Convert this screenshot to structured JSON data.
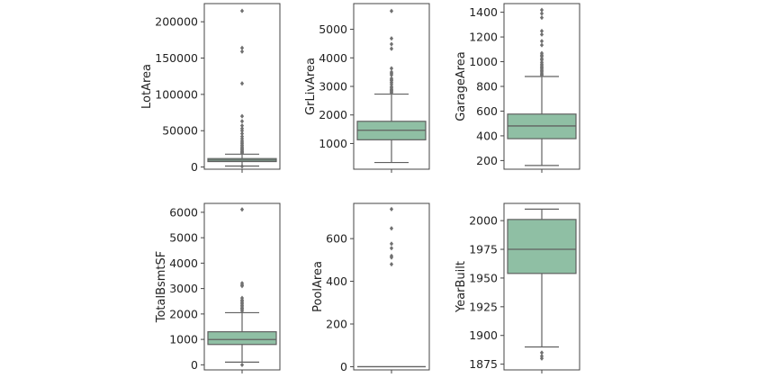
{
  "colors": {
    "box_fill": "#8fbfa4",
    "box_edge": "#606060",
    "outlier": "#707070",
    "frame": "#444444"
  },
  "chart_data": [
    {
      "type": "box",
      "ylabel": "LotArea",
      "ylim": [
        -3000,
        225000
      ],
      "ticks": [
        0,
        50000,
        100000,
        150000,
        200000
      ],
      "tick_labels": [
        "0",
        "50000",
        "100000",
        "150000",
        "200000"
      ],
      "whisker_low": 1300,
      "q1": 7500,
      "median": 9500,
      "q3": 11600,
      "whisker_high": 17700,
      "outliers": [
        215000,
        164000,
        159000,
        115000,
        70000,
        63000,
        57000,
        53000,
        50000,
        46000,
        42000,
        39000,
        36000,
        34000,
        32000,
        30000,
        28000,
        26500,
        25000,
        23500,
        22000,
        21000,
        20000,
        19000,
        1000
      ]
    },
    {
      "type": "box",
      "ylabel": "GrLivArea",
      "ylim": [
        100,
        5900
      ],
      "ticks": [
        1000,
        2000,
        3000,
        4000,
        5000
      ],
      "tick_labels": [
        "1000",
        "2000",
        "3000",
        "4000",
        "5000"
      ],
      "whisker_low": 334,
      "q1": 1130,
      "median": 1464,
      "q3": 1777,
      "whisker_high": 2730,
      "outliers": [
        5640,
        4680,
        4480,
        4320,
        3630,
        3500,
        3450,
        3400,
        3280,
        3230,
        3200,
        3140,
        3080,
        3000,
        2950,
        2900,
        2870,
        2840,
        2800,
        2780
      ]
    },
    {
      "type": "box",
      "ylabel": "GarageArea",
      "ylim": [
        130,
        1470
      ],
      "ticks": [
        200,
        400,
        600,
        800,
        1000,
        1200,
        1400
      ],
      "tick_labels": [
        "200",
        "400",
        "600",
        "800",
        "1000",
        "1200",
        "1400"
      ],
      "whisker_low": 160,
      "q1": 377,
      "median": 480,
      "q3": 576,
      "whisker_high": 880,
      "outliers": [
        1418,
        1390,
        1356,
        1248,
        1220,
        1166,
        1134,
        1069,
        1053,
        1043,
        1025,
        1014,
        995,
        980,
        968,
        958,
        948,
        938,
        928,
        918,
        908,
        898,
        890
      ]
    },
    {
      "type": "box",
      "ylabel": "TotalBsmtSF",
      "ylim": [
        -200,
        6350
      ],
      "ticks": [
        0,
        1000,
        2000,
        3000,
        4000,
        5000,
        6000
      ],
      "tick_labels": [
        "0",
        "1000",
        "2000",
        "3000",
        "4000",
        "5000",
        "6000"
      ],
      "whisker_low": 105,
      "q1": 800,
      "median": 995,
      "q3": 1300,
      "whisker_high": 2050,
      "outliers": [
        6110,
        3210,
        3140,
        3100,
        2630,
        2550,
        2500,
        2440,
        2390,
        2330,
        2280,
        2220,
        2180,
        2120,
        0
      ]
    },
    {
      "type": "box",
      "ylabel": "PoolArea",
      "ylim": [
        -15,
        765
      ],
      "ticks": [
        0,
        200,
        400,
        600
      ],
      "tick_labels": [
        "0",
        "200",
        "400",
        "600"
      ],
      "whisker_low": 0,
      "q1": 0,
      "median": 0,
      "q3": 0,
      "whisker_high": 0,
      "outliers": [
        738,
        648,
        576,
        555,
        519,
        512,
        480
      ]
    },
    {
      "type": "box",
      "ylabel": "YearBuilt",
      "ylim": [
        1870,
        2015
      ],
      "ticks": [
        1875,
        1900,
        1925,
        1950,
        1975,
        2000
      ],
      "tick_labels": [
        "1875",
        "1900",
        "1925",
        "1950",
        "1975",
        "2000"
      ],
      "whisker_low": 1890,
      "q1": 1954,
      "median": 1975,
      "q3": 2001,
      "whisker_high": 2010,
      "outliers": [
        1885,
        1882,
        1880
      ]
    }
  ]
}
